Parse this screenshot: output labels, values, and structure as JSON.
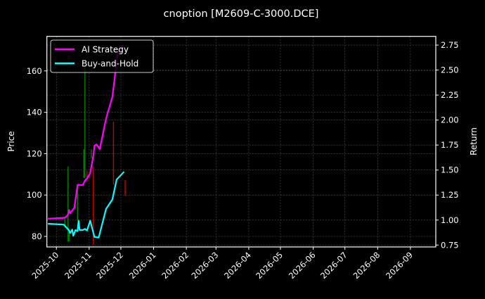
{
  "chart_data": {
    "type": "line",
    "title": "cnoption [M2609-C-3000.DCE]",
    "ylabel": "Price",
    "ylabel_right": "Return",
    "xlim": [
      "2025-09-22",
      "2026-09-25"
    ],
    "ylim": [
      74.9,
      176.7
    ],
    "ylim_right": [
      0.731,
      2.837
    ],
    "grid": true,
    "legend_placement": "upper-left",
    "x_ticks": [
      "2025-10",
      "2025-11",
      "2025-12",
      "2026-01",
      "2026-02",
      "2026-03",
      "2026-04",
      "2026-05",
      "2026-06",
      "2026-07",
      "2026-08",
      "2026-09"
    ],
    "y_ticks": [
      "80",
      "100",
      "120",
      "140",
      "160"
    ],
    "y_ticks_right": [
      "0.75",
      "1.00",
      "1.25",
      "1.50",
      "1.75",
      "2.00",
      "2.25",
      "2.50",
      "2.75"
    ],
    "colors": {
      "background": "#000000",
      "ai_strategy": "#ff00ff",
      "buy_and_hold": "#00ffff",
      "up": "#008a00",
      "down": "#e00000"
    },
    "candles": [
      {
        "date": "2025-10-09",
        "low": 84.3,
        "high": 89.1,
        "dir": "up"
      },
      {
        "date": "2025-10-12",
        "low": 77.6,
        "high": 113.8,
        "dir": "up"
      },
      {
        "date": "2025-10-13",
        "low": 77.6,
        "high": 83.0,
        "dir": "up"
      },
      {
        "date": "2025-10-21",
        "low": 87.8,
        "high": 104.8,
        "dir": "up"
      },
      {
        "date": "2025-10-27",
        "low": 108.2,
        "high": 122.1,
        "dir": "up"
      },
      {
        "date": "2025-10-28",
        "low": 108.2,
        "high": 162.7,
        "dir": "up"
      },
      {
        "date": "2025-10-30",
        "low": 106.5,
        "high": 111.6,
        "dir": "down"
      },
      {
        "date": "2025-11-03",
        "low": 117.8,
        "high": 122.1,
        "dir": "up"
      },
      {
        "date": "2025-11-05",
        "low": 76.3,
        "high": 113.7,
        "dir": "down"
      },
      {
        "date": "2025-11-24",
        "low": 105.0,
        "high": 135.4,
        "dir": "down"
      },
      {
        "date": "2025-12-05",
        "low": 99.7,
        "high": 107.2,
        "dir": "down"
      }
    ],
    "series": [
      {
        "name": "AI Strategy",
        "axis": "right",
        "x": [
          "2025-09-23",
          "2025-10-09",
          "2025-10-12",
          "2025-10-13",
          "2025-10-14",
          "2025-10-18",
          "2025-10-21",
          "2025-10-26",
          "2025-10-28",
          "2025-10-30",
          "2025-11-02",
          "2025-11-05",
          "2025-11-06",
          "2025-11-08",
          "2025-11-11",
          "2025-11-17",
          "2025-11-23",
          "2025-11-26",
          "2025-11-28",
          "2025-12-03"
        ],
        "values": [
          1.013,
          1.023,
          1.053,
          1.1,
          1.069,
          1.123,
          1.351,
          1.351,
          1.393,
          1.417,
          1.468,
          1.651,
          1.745,
          1.757,
          1.71,
          2.015,
          2.234,
          2.496,
          2.661,
          2.75
        ]
      },
      {
        "name": "Buy-and-Hold",
        "axis": "right",
        "x": [
          "2025-09-23",
          "2025-10-08",
          "2025-10-13",
          "2025-10-14",
          "2025-10-16",
          "2025-10-17",
          "2025-10-19",
          "2025-10-21",
          "2025-10-22",
          "2025-10-23",
          "2025-10-26",
          "2025-10-28",
          "2025-10-30",
          "2025-11-02",
          "2025-11-06",
          "2025-11-10",
          "2025-11-17",
          "2025-11-23",
          "2025-11-27",
          "2025-12-04"
        ],
        "values": [
          0.963,
          0.954,
          0.896,
          0.87,
          0.905,
          0.842,
          0.9,
          0.889,
          0.994,
          0.9,
          0.9,
          0.912,
          0.896,
          0.994,
          0.83,
          0.825,
          1.111,
          1.206,
          1.405,
          1.483
        ]
      }
    ]
  }
}
